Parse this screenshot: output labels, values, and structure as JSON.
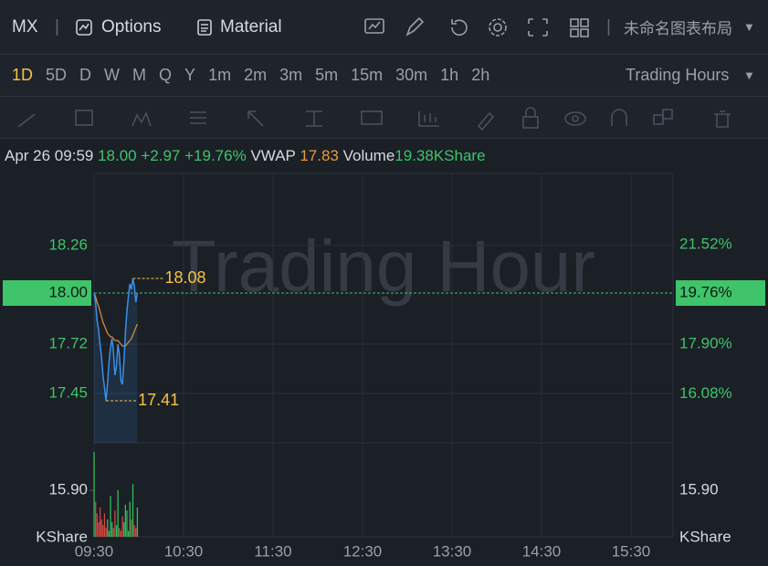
{
  "toolbar": {
    "symbol": "MX",
    "options": "Options",
    "material": "Material",
    "layout": "未命名图表布局"
  },
  "intervals": [
    "1D",
    "5D",
    "D",
    "W",
    "M",
    "Q",
    "Y",
    "1m",
    "2m",
    "3m",
    "5m",
    "15m",
    "30m",
    "1h",
    "2h"
  ],
  "session": "Trading Hours",
  "quote": {
    "date": "Apr 26 09:59",
    "price": "18.00",
    "change": "+2.97",
    "change_pct": "+19.76%",
    "vwap_label": "VWAP",
    "vwap": "17.83",
    "volume_label": "Volume",
    "volume": "19.38KShare"
  },
  "chart_data": {
    "type": "line",
    "watermark": "Trading Hour",
    "x": [
      "09:30",
      "09:31",
      "09:32",
      "09:33",
      "09:34",
      "09:35",
      "09:36",
      "09:37",
      "09:38",
      "09:39",
      "09:40",
      "09:41",
      "09:42",
      "09:43",
      "09:44",
      "09:45",
      "09:46",
      "09:47",
      "09:48",
      "09:49",
      "09:50",
      "09:51",
      "09:52",
      "09:53",
      "09:54",
      "09:55",
      "09:56",
      "09:57",
      "09:58",
      "09:59"
    ],
    "xlim": [
      "09:30",
      "16:00"
    ],
    "xticks": [
      "09:30",
      "10:30",
      "11:30",
      "12:30",
      "13:30",
      "14:30",
      "15:30"
    ],
    "price": {
      "color": "#3b8fe6",
      "values": [
        18.0,
        17.95,
        17.85,
        17.8,
        17.72,
        17.65,
        17.55,
        17.48,
        17.41,
        17.5,
        17.62,
        17.7,
        17.75,
        17.68,
        17.55,
        17.6,
        17.72,
        17.66,
        17.52,
        17.5,
        17.62,
        17.78,
        17.9,
        17.98,
        18.05,
        18.02,
        18.08,
        18.04,
        17.95,
        18.0
      ]
    },
    "vwap": {
      "color": "#d98a3a",
      "values": [
        18.0,
        17.98,
        17.95,
        17.93,
        17.9,
        17.87,
        17.84,
        17.82,
        17.8,
        17.78,
        17.77,
        17.76,
        17.76,
        17.75,
        17.74,
        17.74,
        17.74,
        17.73,
        17.72,
        17.71,
        17.71,
        17.71,
        17.72,
        17.73,
        17.74,
        17.75,
        17.77,
        17.79,
        17.81,
        17.83
      ]
    },
    "volume": {
      "up_color": "#2ebd5a",
      "down_color": "#d9453f",
      "values": [
        29,
        12,
        8,
        5,
        10,
        6,
        4,
        8,
        3,
        6,
        2,
        14,
        5,
        3,
        9,
        4,
        16,
        3,
        2,
        7,
        5,
        11,
        9,
        2,
        12,
        6,
        18,
        4,
        3,
        10
      ]
    },
    "ylim": [
      17.18,
      18.655
    ],
    "yticks": [
      17.45,
      17.72,
      {
        "value": 18,
        "label": "18.00"
      },
      18.26
    ],
    "y2lim": [
      14.3,
      24.12
    ],
    "y2ticks": [
      {
        "value": 16.08,
        "label": "16.08%"
      },
      {
        "value": 17.9,
        "label": "17.90%"
      },
      {
        "value": 19.76,
        "label": "19.76%"
      },
      {
        "value": 21.52,
        "label": "21.52%"
      }
    ],
    "last_price": 18,
    "last_price_pct": 19.76,
    "high": 18.08,
    "low": 17.41,
    "volume_lim": [
      0,
      30
    ],
    "volume_ticks": [
      {
        "value": 15.9,
        "label": "15.90"
      }
    ],
    "volume_unit": "KShare",
    "grid": true
  }
}
